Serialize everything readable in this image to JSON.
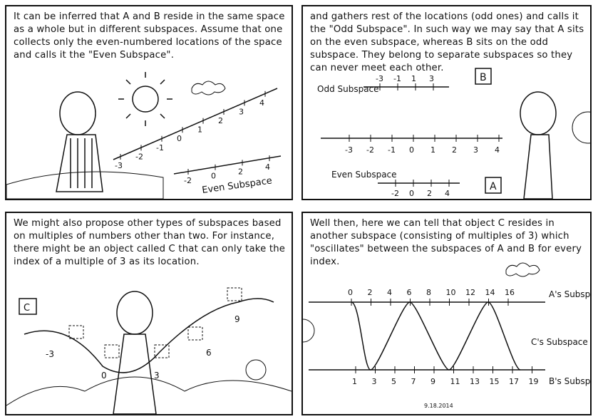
{
  "panels": [
    {
      "caption": "It can be inferred that A and B reside in the same space as a whole but in different subspaces. Assume that one collects only the even-numbered locations of the space and calls it the \"Even Subspace\".",
      "line_labels": [
        "-3",
        "-2",
        "-1",
        "0",
        "1",
        "2",
        "3",
        "4"
      ],
      "even_labels": [
        "-2",
        "0",
        "2",
        "4"
      ],
      "even_label": "Even Subspace"
    },
    {
      "caption": "and gathers rest of the locations (odd ones) and calls it the \"Odd Subspace\". In such way we may say that A sits on the even subspace, whereas B sits on the odd subspace. They belong to separate subspaces so they can never meet each other.",
      "odd_label": "Odd Subspace",
      "odd_labels": [
        "-3",
        "-1",
        "1",
        "3"
      ],
      "line_labels": [
        "-3",
        "-2",
        "-1",
        "0",
        "1",
        "2",
        "3",
        "4"
      ],
      "even_label": "Even Subspace",
      "even_labels": [
        "-2",
        "0",
        "2",
        "4"
      ],
      "box_b": "B",
      "box_a": "A"
    },
    {
      "caption": "We might also propose other types of subspaces based on multiples of numbers other than two. For instance, there might be an object called C that can only take the index of a multiple of 3 as its location.",
      "box_c": "C",
      "labels": [
        "-3",
        "0",
        "3",
        "6",
        "9"
      ]
    },
    {
      "caption": "Well then, here we can tell that object C resides in another subspace (consisting of multiples of 3) which \"oscillates\" between the subspaces of A and B for every index.",
      "a_ticks": [
        "0",
        "2",
        "4",
        "6",
        "8",
        "10",
        "12",
        "14",
        "16"
      ],
      "b_ticks": [
        "1",
        "3",
        "5",
        "7",
        "9",
        "11",
        "13",
        "15",
        "17",
        "19"
      ],
      "a_label": "A's Subspace",
      "c_label": "C's Subspace",
      "b_label": "B's Subspace",
      "date": "9.18.2014"
    }
  ]
}
